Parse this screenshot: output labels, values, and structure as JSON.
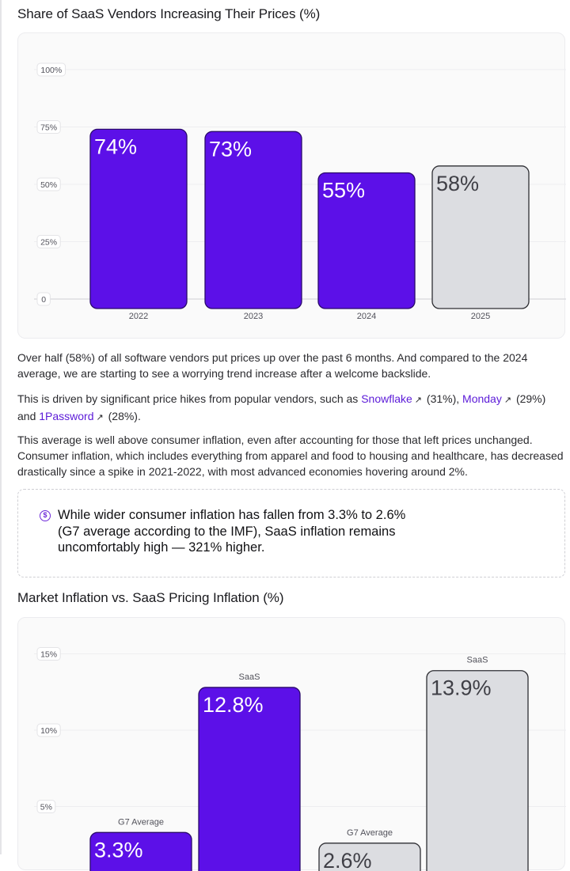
{
  "section1": {
    "title": "Share of SaaS Vendors Increasing Their Prices (%)"
  },
  "section2": {
    "title": "Market Inflation vs. SaaS Pricing Inflation (%)"
  },
  "paragraphs": {
    "p1": "Over half (58%) of all software vendors put prices up over the past 6 months. And compared to the 2024 average, we are starting to see a worrying trend increase after a welcome backslide.",
    "p2_before": "This is driven by significant price hikes from popular vendors, such as ",
    "p2_vendor1": "Snowflake",
    "p2_vendor1_pct": " (31%), ",
    "p2_vendor2": "Monday",
    "p2_vendor2_pct": " (29%)",
    "p2_and": " and ",
    "p2_vendor3": "1Password",
    "p2_vendor3_pct": " (28%).",
    "external_icon": "↗",
    "p3": "This average is well above consumer inflation, even after accounting for those that left prices unchanged. Consumer inflation, which includes everything from apparel and food to housing and healthcare, has decreased drastically since a spike in 2021-2022, with most advanced economies hovering around 2%."
  },
  "callout": {
    "icon": "dollar-circle-icon",
    "icon_glyph": "$",
    "text": "While wider consumer inflation has fallen from 3.3% to 2.6% (G7 average according to the IMF), SaaS inflation remains uncomfortably high — 321% higher."
  },
  "colors": {
    "primary_bar": "#5c10e8",
    "primary_bar_border": "#2a0a6b",
    "secondary_bar": "#dcdde1",
    "secondary_bar_border": "#2e2e33",
    "link": "#5b1ad8"
  },
  "chart_data": [
    {
      "type": "bar",
      "title": "Share of SaaS Vendors Increasing Their Prices (%)",
      "categories": [
        "2022",
        "2023",
        "2024",
        "2025"
      ],
      "values": [
        74,
        73,
        55,
        58
      ],
      "value_labels": [
        "74%",
        "73%",
        "55%",
        "58%"
      ],
      "highlight": [
        true,
        true,
        true,
        false
      ],
      "yticks": [
        0,
        25,
        50,
        75,
        100
      ],
      "ytick_labels": [
        "0",
        "25%",
        "50%",
        "75%",
        "100%"
      ],
      "ylim": [
        0,
        100
      ],
      "xlabel": "",
      "ylabel": ""
    },
    {
      "type": "bar",
      "title": "Market Inflation vs. SaaS Pricing Inflation (%)",
      "categories": [
        "G7 Average",
        "SaaS",
        "G7 Average",
        "SaaS"
      ],
      "values": [
        3.3,
        12.8,
        2.6,
        13.9
      ],
      "value_labels": [
        "3.3%",
        "12.8%",
        "2.6%",
        "13.9%"
      ],
      "highlight": [
        true,
        true,
        false,
        false
      ],
      "yticks": [
        5,
        10,
        15
      ],
      "ytick_labels": [
        "5%",
        "10%",
        "15%"
      ],
      "ylim": [
        0,
        15
      ],
      "xlabel": "",
      "ylabel": ""
    }
  ]
}
